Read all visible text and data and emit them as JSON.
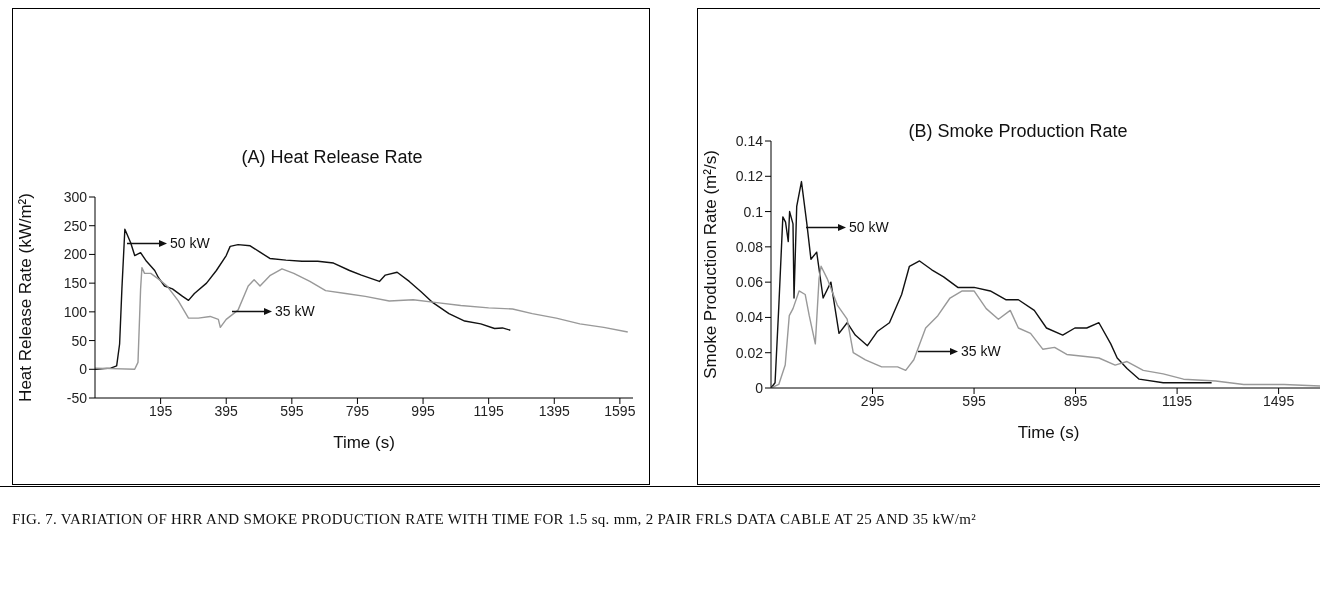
{
  "chart_data": [
    {
      "type": "line",
      "title": "(A) Heat Release Rate",
      "xlabel": "Time (s)",
      "ylabel": "Heat Release Rate (kW/m²)",
      "xlim": [
        -5,
        1635
      ],
      "xticks": [
        195,
        395,
        595,
        795,
        995,
        1195,
        1395,
        1595
      ],
      "ylim": [
        -50,
        300
      ],
      "yticks": [
        -50,
        0,
        50,
        100,
        150,
        200,
        250,
        300
      ],
      "grid": false,
      "legend": false,
      "marker": "none",
      "line_style": "solid",
      "series": [
        {
          "color": "#111111",
          "x": [
            -5,
            43,
            61,
            70,
            77,
            86,
            92,
            104,
            116,
            134,
            152,
            177,
            189,
            207,
            231,
            262,
            280,
            298,
            335,
            365,
            395,
            407,
            431,
            468,
            498,
            528,
            577,
            626,
            674,
            722,
            771,
            807,
            862,
            880,
            916,
            953,
            989,
            1025,
            1074,
            1122,
            1171,
            1213,
            1237,
            1261
          ],
          "values": [
            0,
            2,
            6,
            44,
            140,
            244,
            236,
            220,
            198,
            203,
            188,
            172,
            159,
            145,
            140,
            127,
            120,
            132,
            150,
            172,
            198,
            214,
            217,
            215,
            204,
            193,
            190,
            188,
            188,
            185,
            172,
            164,
            153,
            164,
            169,
            153,
            135,
            116,
            97,
            84,
            79,
            71,
            72,
            68
          ]
        },
        {
          "color": "#999999",
          "x": [
            -5,
            116,
            126,
            134,
            138,
            146,
            165,
            189,
            213,
            249,
            280,
            310,
            346,
            371,
            377,
            395,
            431,
            462,
            480,
            498,
            528,
            565,
            601,
            650,
            698,
            759,
            819,
            892,
            965,
            1037,
            1110,
            1195,
            1268,
            1328,
            1401,
            1473,
            1546,
            1619
          ],
          "values": [
            2,
            0,
            12,
            140,
            177,
            167,
            167,
            157,
            146,
            119,
            89,
            89,
            92,
            87,
            73,
            87,
            103,
            145,
            156,
            145,
            163,
            175,
            167,
            153,
            137,
            132,
            127,
            119,
            121,
            116,
            111,
            107,
            105,
            97,
            89,
            79,
            73,
            65
          ]
        }
      ],
      "annotations": [
        "50 kW",
        "35 kW",
        "FIG. 7.  VARIATION OF HRR AND SMOKE PRODUCTION RATE WITH TIME FOR 1.5 sq. mm, 2 PAIR FRLS DATA CABLE AT 25 AND 35 kW/m²"
      ]
    },
    {
      "type": "line",
      "title": "(B) Smoke Production Rate",
      "xlabel": "Time (s)",
      "ylabel": "Smoke Production Rate (m²/s)",
      "xlim": [
        -5,
        1635
      ],
      "xticks": [
        295,
        595,
        895,
        1195,
        1495
      ],
      "ylim": [
        0,
        0.14
      ],
      "yticks": [
        0,
        0.02,
        0.04,
        0.06,
        0.08,
        0.1,
        0.12,
        0.14
      ],
      "grid": false,
      "legend": false,
      "marker": "none",
      "line_style": "solid",
      "series": [
        {
          "color": "#111111",
          "x": [
            -5,
            7,
            18,
            30,
            38,
            46,
            50,
            60,
            63,
            71,
            85,
            101,
            113,
            130,
            149,
            172,
            196,
            220,
            244,
            280,
            309,
            345,
            381,
            404,
            434,
            470,
            505,
            547,
            595,
            643,
            690,
            726,
            773,
            809,
            857,
            893,
            928,
            964,
            999,
            1018,
            1047,
            1083,
            1154,
            1297
          ],
          "values": [
            0,
            0.003,
            0.046,
            0.097,
            0.094,
            0.083,
            0.1,
            0.093,
            0.051,
            0.103,
            0.117,
            0.093,
            0.073,
            0.077,
            0.051,
            0.06,
            0.031,
            0.037,
            0.03,
            0.024,
            0.032,
            0.037,
            0.053,
            0.069,
            0.072,
            0.067,
            0.063,
            0.057,
            0.057,
            0.055,
            0.05,
            0.05,
            0.044,
            0.034,
            0.03,
            0.034,
            0.034,
            0.037,
            0.025,
            0.017,
            0.011,
            0.005,
            0.003,
            0.003
          ]
        },
        {
          "color": "#999999",
          "x": [
            -5,
            18,
            37,
            49,
            60,
            78,
            96,
            108,
            126,
            137,
            143,
            161,
            191,
            220,
            238,
            274,
            322,
            369,
            393,
            417,
            452,
            488,
            524,
            560,
            595,
            631,
            667,
            702,
            726,
            762,
            798,
            833,
            869,
            917,
            964,
            1012,
            1047,
            1095,
            1154,
            1214,
            1309,
            1392,
            1511,
            1630
          ],
          "values": [
            0,
            0.002,
            0.013,
            0.041,
            0.045,
            0.055,
            0.053,
            0.041,
            0.025,
            0.062,
            0.069,
            0.062,
            0.047,
            0.039,
            0.02,
            0.016,
            0.012,
            0.012,
            0.01,
            0.016,
            0.034,
            0.041,
            0.051,
            0.055,
            0.055,
            0.045,
            0.039,
            0.044,
            0.034,
            0.031,
            0.022,
            0.023,
            0.019,
            0.018,
            0.017,
            0.013,
            0.015,
            0.01,
            0.008,
            0.005,
            0.004,
            0.002,
            0.002,
            0.001
          ]
        }
      ],
      "annotations": [
        "50 kW",
        "35 kW"
      ]
    }
  ]
}
